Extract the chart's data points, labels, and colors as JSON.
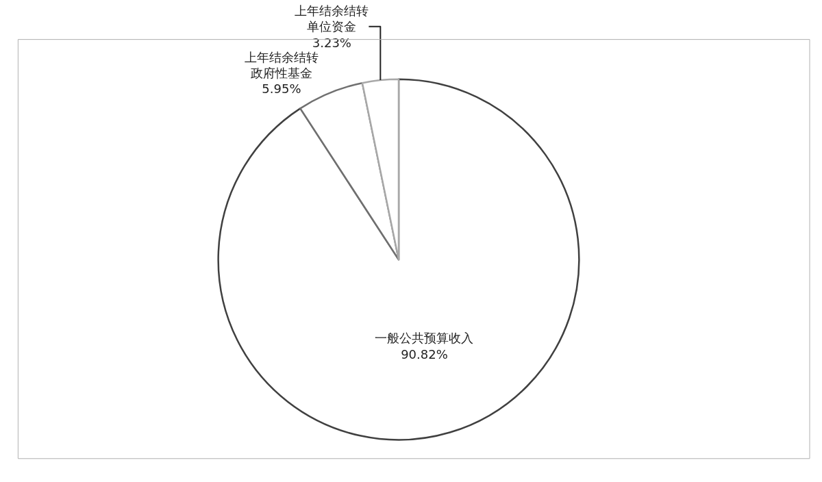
{
  "chart_data": {
    "type": "pie",
    "categories": [
      "一般公共预算收入",
      "上年结余结转政府性基金",
      "上年结余结转单位资金"
    ],
    "values": [
      90.82,
      5.95,
      3.23
    ],
    "value_labels": [
      "90.82%",
      "5.95%",
      "3.23%"
    ],
    "colors": [
      "#404040",
      "#707070",
      "#a8a8a8"
    ]
  }
}
